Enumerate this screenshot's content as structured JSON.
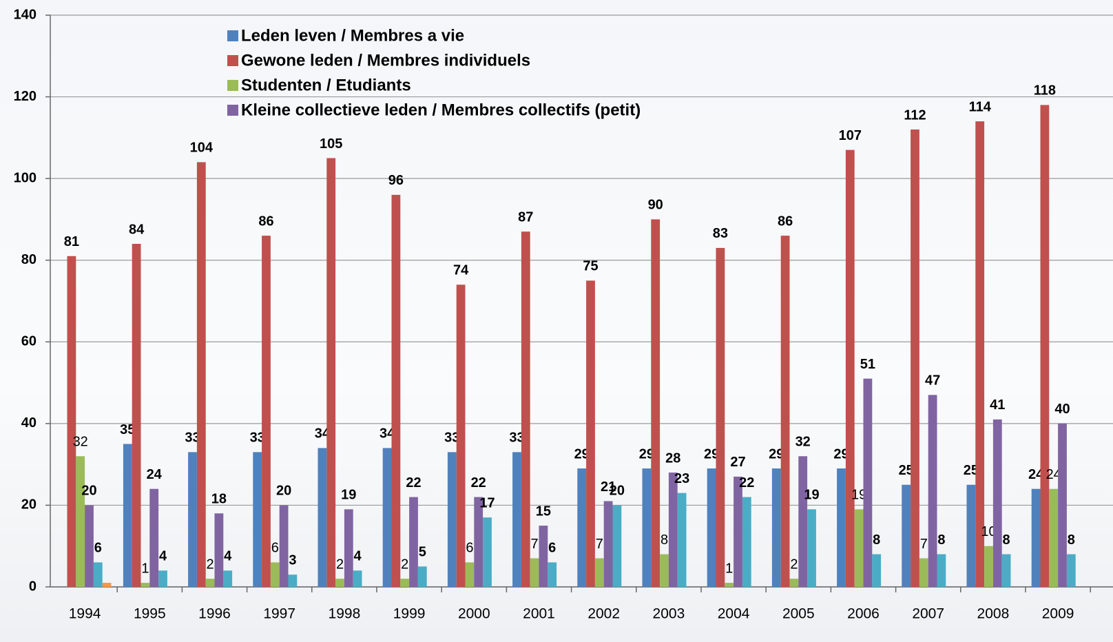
{
  "chart_data": {
    "type": "bar",
    "categories": [
      "1994",
      "1995",
      "1996",
      "1997",
      "1998",
      "1999",
      "2000",
      "2001",
      "2002",
      "2003",
      "2004",
      "2005",
      "2006",
      "2007",
      "2008",
      "2009"
    ],
    "series": [
      {
        "name": "Leden leven / Membres a vie",
        "color": "#4f81bd",
        "values": [
          null,
          35,
          33,
          33,
          34,
          34,
          33,
          33,
          29,
          29,
          29,
          29,
          29,
          25,
          25,
          24
        ]
      },
      {
        "name": "Gewone leden / Membres individuels",
        "color": "#c0504d",
        "values": [
          81,
          84,
          104,
          86,
          105,
          96,
          74,
          87,
          75,
          90,
          83,
          86,
          107,
          112,
          114,
          118
        ]
      },
      {
        "name": "Studenten /  Etudiants",
        "color": "#9bbb59",
        "values": [
          32,
          1,
          2,
          6,
          2,
          2,
          6,
          7,
          7,
          8,
          1,
          2,
          19,
          7,
          10,
          24
        ],
        "bold_labels": false
      },
      {
        "name": "Kleine collectieve leden / Membres collectifs (petit)",
        "color": "#8064a2",
        "values": [
          20,
          24,
          18,
          20,
          19,
          22,
          22,
          15,
          21,
          28,
          27,
          32,
          51,
          47,
          41,
          40
        ]
      },
      {
        "color": "#4bacc6",
        "values": [
          6,
          4,
          4,
          3,
          4,
          5,
          17,
          6,
          20,
          23,
          22,
          19,
          8,
          8,
          8,
          8
        ]
      },
      {
        "color": "#f79646",
        "values": [
          1,
          null,
          null,
          null,
          null,
          null,
          null,
          null,
          null,
          null,
          null,
          null,
          null,
          null,
          null,
          null
        ],
        "show_labels": false
      }
    ],
    "ylim": [
      0,
      140
    ],
    "yticks": [
      0,
      20,
      40,
      60,
      80,
      100,
      120,
      140
    ],
    "grid": true
  }
}
